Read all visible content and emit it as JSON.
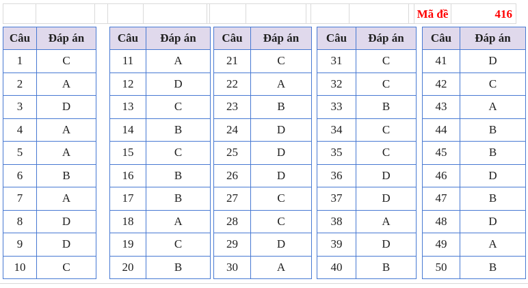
{
  "exam_code": {
    "label": "Mã đề",
    "value": "416"
  },
  "columns": {
    "question": "Câu",
    "answer": "Đáp án"
  },
  "groups": [
    {
      "rows": [
        [
          "1",
          "C"
        ],
        [
          "2",
          "A"
        ],
        [
          "3",
          "D"
        ],
        [
          "4",
          "A"
        ],
        [
          "5",
          "A"
        ],
        [
          "6",
          "B"
        ],
        [
          "7",
          "A"
        ],
        [
          "8",
          "D"
        ],
        [
          "9",
          "D"
        ],
        [
          "10",
          "C"
        ]
      ]
    },
    {
      "rows": [
        [
          "11",
          "A"
        ],
        [
          "12",
          "D"
        ],
        [
          "13",
          "C"
        ],
        [
          "14",
          "B"
        ],
        [
          "15",
          "C"
        ],
        [
          "16",
          "B"
        ],
        [
          "17",
          "B"
        ],
        [
          "18",
          "A"
        ],
        [
          "19",
          "C"
        ],
        [
          "20",
          "B"
        ]
      ]
    },
    {
      "rows": [
        [
          "21",
          "C"
        ],
        [
          "22",
          "A"
        ],
        [
          "23",
          "B"
        ],
        [
          "24",
          "D"
        ],
        [
          "25",
          "D"
        ],
        [
          "26",
          "D"
        ],
        [
          "27",
          "C"
        ],
        [
          "28",
          "C"
        ],
        [
          "29",
          "D"
        ],
        [
          "30",
          "A"
        ]
      ]
    },
    {
      "rows": [
        [
          "31",
          "C"
        ],
        [
          "32",
          "C"
        ],
        [
          "33",
          "B"
        ],
        [
          "34",
          "C"
        ],
        [
          "35",
          "C"
        ],
        [
          "36",
          "D"
        ],
        [
          "37",
          "D"
        ],
        [
          "38",
          "A"
        ],
        [
          "39",
          "D"
        ],
        [
          "40",
          "B"
        ]
      ]
    },
    {
      "rows": [
        [
          "41",
          "D"
        ],
        [
          "42",
          "C"
        ],
        [
          "43",
          "A"
        ],
        [
          "44",
          "B"
        ],
        [
          "45",
          "B"
        ],
        [
          "46",
          "D"
        ],
        [
          "47",
          "B"
        ],
        [
          "48",
          "D"
        ],
        [
          "49",
          "A"
        ],
        [
          "50",
          "B"
        ]
      ]
    }
  ],
  "colors": {
    "border_blue": "#4678d2",
    "header_bg": "#e0d9ec",
    "gridline": "#d9d9d9",
    "accent_red": "#ff0000",
    "text": "#202020"
  }
}
